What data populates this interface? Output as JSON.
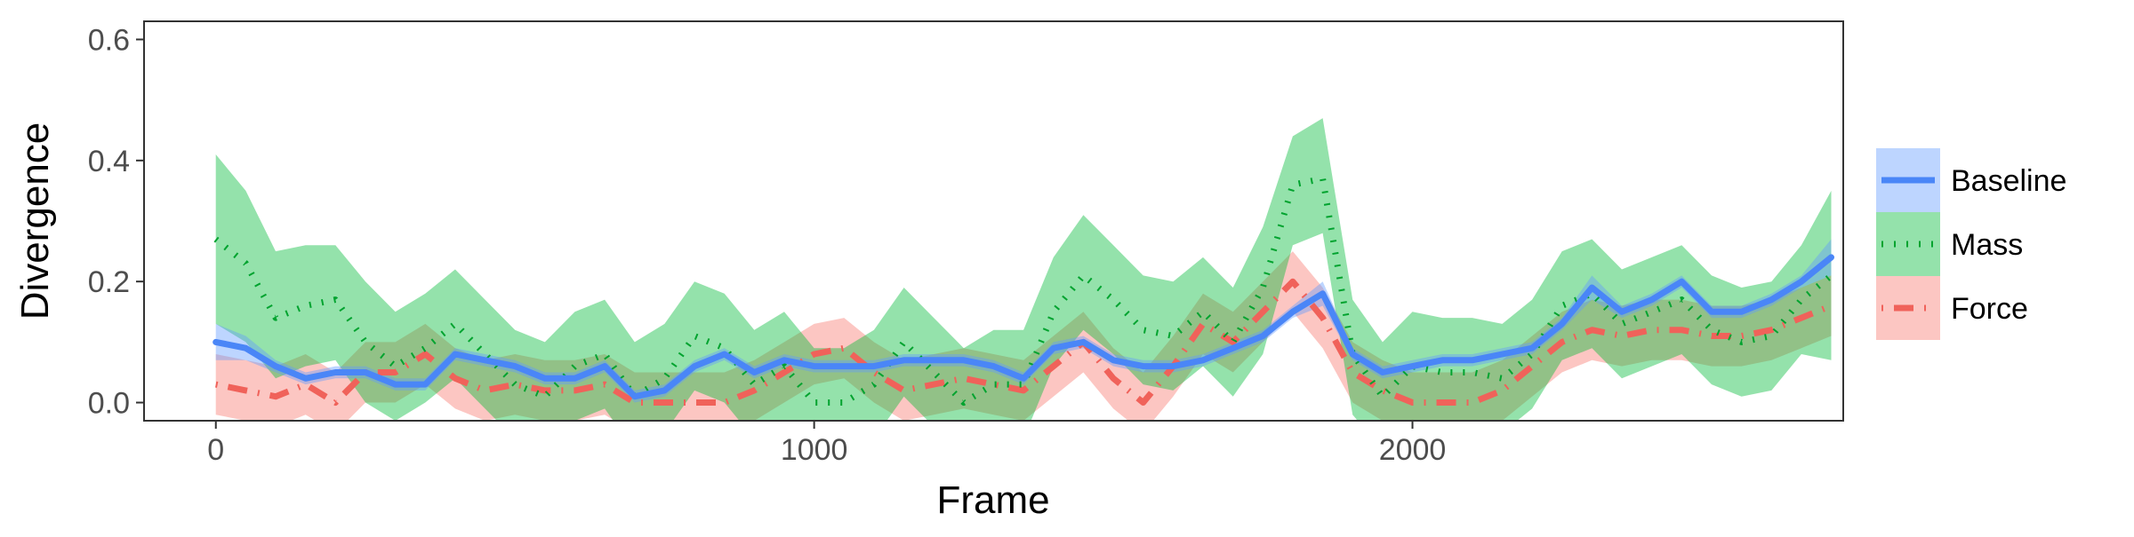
{
  "chart_data": {
    "type": "line",
    "xlabel": "Frame",
    "ylabel": "Divergence",
    "xlim": [
      -120,
      2720
    ],
    "ylim": [
      -0.03,
      0.63
    ],
    "xticks": [
      0,
      1000,
      2000
    ],
    "xtick_labels": [
      "0",
      "1000",
      "2000"
    ],
    "yticks": [
      0.0,
      0.2,
      0.4,
      0.6
    ],
    "ytick_labels": [
      "0.0",
      "0.2",
      "0.4",
      "0.6"
    ],
    "grid": false,
    "legend_position": "right",
    "x": [
      0,
      50,
      100,
      150,
      200,
      250,
      300,
      350,
      400,
      450,
      500,
      550,
      600,
      650,
      700,
      750,
      800,
      850,
      900,
      950,
      1000,
      1050,
      1100,
      1150,
      1200,
      1250,
      1300,
      1350,
      1400,
      1450,
      1500,
      1550,
      1600,
      1650,
      1700,
      1750,
      1800,
      1850,
      1900,
      1950,
      2000,
      2050,
      2100,
      2150,
      2200,
      2250,
      2300,
      2350,
      2400,
      2450,
      2500,
      2550,
      2600,
      2650,
      2700
    ],
    "series": [
      {
        "name": "Baseline",
        "color": "#619CFF",
        "line_color": "#4A86F7",
        "dash": "solid",
        "values": [
          0.1,
          0.09,
          0.06,
          0.04,
          0.05,
          0.05,
          0.03,
          0.03,
          0.08,
          0.07,
          0.06,
          0.04,
          0.04,
          0.06,
          0.01,
          0.02,
          0.06,
          0.08,
          0.05,
          0.07,
          0.06,
          0.06,
          0.06,
          0.07,
          0.07,
          0.07,
          0.06,
          0.04,
          0.09,
          0.1,
          0.07,
          0.06,
          0.06,
          0.07,
          0.09,
          0.11,
          0.15,
          0.18,
          0.08,
          0.05,
          0.06,
          0.07,
          0.07,
          0.08,
          0.09,
          0.13,
          0.19,
          0.15,
          0.17,
          0.2,
          0.15,
          0.15,
          0.17,
          0.2,
          0.24
        ],
        "lower": [
          0.07,
          0.07,
          0.05,
          0.03,
          0.04,
          0.04,
          0.02,
          0.02,
          0.07,
          0.06,
          0.05,
          0.03,
          0.03,
          0.05,
          0.0,
          0.01,
          0.05,
          0.07,
          0.04,
          0.06,
          0.05,
          0.05,
          0.05,
          0.06,
          0.06,
          0.06,
          0.05,
          0.03,
          0.08,
          0.09,
          0.06,
          0.05,
          0.05,
          0.06,
          0.08,
          0.1,
          0.14,
          0.16,
          0.07,
          0.04,
          0.05,
          0.06,
          0.06,
          0.07,
          0.08,
          0.12,
          0.17,
          0.14,
          0.16,
          0.19,
          0.14,
          0.14,
          0.16,
          0.19,
          0.21
        ],
        "upper": [
          0.13,
          0.11,
          0.07,
          0.05,
          0.06,
          0.06,
          0.04,
          0.04,
          0.09,
          0.08,
          0.07,
          0.05,
          0.05,
          0.07,
          0.02,
          0.03,
          0.07,
          0.09,
          0.06,
          0.08,
          0.07,
          0.07,
          0.07,
          0.08,
          0.08,
          0.08,
          0.07,
          0.05,
          0.1,
          0.11,
          0.08,
          0.07,
          0.07,
          0.08,
          0.1,
          0.12,
          0.16,
          0.2,
          0.09,
          0.06,
          0.07,
          0.08,
          0.08,
          0.09,
          0.1,
          0.14,
          0.21,
          0.16,
          0.18,
          0.21,
          0.16,
          0.16,
          0.18,
          0.21,
          0.27
        ]
      },
      {
        "name": "Mass",
        "color": "#00BA38",
        "line_color": "#00A32F",
        "dash": "dotted",
        "values": [
          0.27,
          0.23,
          0.14,
          0.16,
          0.17,
          0.1,
          0.06,
          0.09,
          0.13,
          0.08,
          0.03,
          0.01,
          0.06,
          0.08,
          0.01,
          0.04,
          0.11,
          0.09,
          0.03,
          0.06,
          0.0,
          0.0,
          0.03,
          0.1,
          0.05,
          0.0,
          0.03,
          0.03,
          0.15,
          0.21,
          0.17,
          0.12,
          0.11,
          0.15,
          0.1,
          0.19,
          0.36,
          0.37,
          0.08,
          0.01,
          0.06,
          0.05,
          0.05,
          0.04,
          0.08,
          0.16,
          0.18,
          0.13,
          0.15,
          0.17,
          0.12,
          0.1,
          0.11,
          0.17,
          0.21
        ],
        "lower": [
          0.13,
          0.1,
          0.04,
          0.06,
          0.07,
          0.0,
          -0.03,
          0.0,
          0.04,
          -0.01,
          -0.06,
          -0.07,
          -0.03,
          -0.01,
          -0.08,
          -0.05,
          0.02,
          0.0,
          -0.06,
          -0.03,
          -0.09,
          -0.09,
          -0.06,
          0.01,
          -0.04,
          -0.09,
          -0.06,
          -0.06,
          0.06,
          0.12,
          0.08,
          0.03,
          0.02,
          0.06,
          0.01,
          0.08,
          0.26,
          0.28,
          -0.02,
          -0.08,
          -0.03,
          -0.04,
          -0.04,
          -0.05,
          -0.01,
          0.07,
          0.09,
          0.04,
          0.06,
          0.08,
          0.03,
          0.01,
          0.02,
          0.08,
          0.07
        ],
        "upper": [
          0.41,
          0.35,
          0.25,
          0.26,
          0.26,
          0.2,
          0.15,
          0.18,
          0.22,
          0.17,
          0.12,
          0.1,
          0.15,
          0.17,
          0.1,
          0.13,
          0.2,
          0.18,
          0.12,
          0.15,
          0.09,
          0.09,
          0.12,
          0.19,
          0.14,
          0.09,
          0.12,
          0.12,
          0.24,
          0.31,
          0.26,
          0.21,
          0.2,
          0.24,
          0.19,
          0.29,
          0.44,
          0.47,
          0.17,
          0.1,
          0.15,
          0.14,
          0.14,
          0.13,
          0.17,
          0.25,
          0.27,
          0.22,
          0.24,
          0.26,
          0.21,
          0.19,
          0.2,
          0.26,
          0.35
        ]
      },
      {
        "name": "Force",
        "color": "#F8766D",
        "line_color": "#F0625A",
        "dash": "dotdash",
        "values": [
          0.03,
          0.02,
          0.01,
          0.03,
          0.0,
          0.05,
          0.05,
          0.08,
          0.04,
          0.02,
          0.03,
          0.02,
          0.02,
          0.03,
          0.0,
          0.0,
          0.0,
          0.0,
          0.02,
          0.05,
          0.08,
          0.09,
          0.05,
          0.02,
          0.03,
          0.04,
          0.03,
          0.02,
          0.06,
          0.1,
          0.04,
          0.0,
          0.06,
          0.13,
          0.1,
          0.15,
          0.2,
          0.14,
          0.05,
          0.02,
          0.0,
          0.0,
          0.0,
          0.02,
          0.06,
          0.1,
          0.12,
          0.11,
          0.12,
          0.12,
          0.11,
          0.11,
          0.12,
          0.14,
          0.16
        ],
        "lower": [
          -0.02,
          -0.03,
          -0.04,
          -0.02,
          -0.05,
          0.0,
          0.0,
          0.03,
          -0.01,
          -0.03,
          -0.02,
          -0.03,
          -0.03,
          -0.02,
          -0.05,
          -0.05,
          -0.05,
          -0.05,
          -0.03,
          0.0,
          0.03,
          0.04,
          0.0,
          -0.03,
          -0.02,
          -0.01,
          -0.02,
          -0.03,
          0.01,
          0.05,
          -0.01,
          -0.05,
          0.01,
          0.08,
          0.05,
          0.1,
          0.15,
          0.09,
          0.0,
          -0.03,
          -0.05,
          -0.05,
          -0.05,
          -0.03,
          0.01,
          0.05,
          0.07,
          0.06,
          0.07,
          0.07,
          0.06,
          0.06,
          0.07,
          0.09,
          0.11
        ],
        "upper": [
          0.08,
          0.07,
          0.06,
          0.08,
          0.05,
          0.1,
          0.1,
          0.13,
          0.09,
          0.07,
          0.08,
          0.07,
          0.07,
          0.08,
          0.05,
          0.05,
          0.05,
          0.05,
          0.07,
          0.1,
          0.13,
          0.14,
          0.1,
          0.07,
          0.08,
          0.09,
          0.08,
          0.07,
          0.11,
          0.15,
          0.09,
          0.05,
          0.11,
          0.18,
          0.15,
          0.2,
          0.25,
          0.19,
          0.1,
          0.07,
          0.05,
          0.05,
          0.05,
          0.07,
          0.11,
          0.15,
          0.17,
          0.16,
          0.17,
          0.17,
          0.16,
          0.16,
          0.17,
          0.19,
          0.21
        ]
      }
    ]
  }
}
